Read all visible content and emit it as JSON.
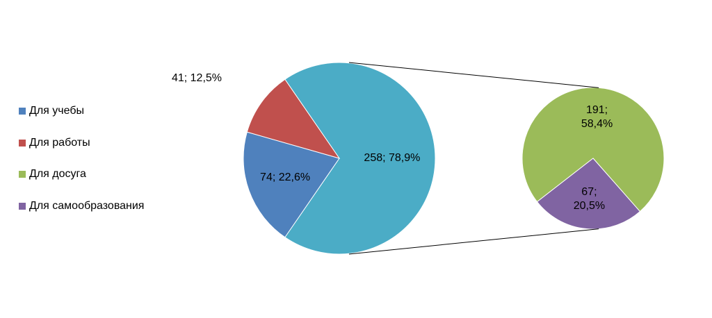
{
  "chart_data": {
    "type": "pie-of-pie",
    "main": {
      "categories": [
        "Для учебы",
        "Для работы",
        null
      ],
      "values": [
        74,
        41,
        258
      ],
      "value_labels": [
        "74; 22,6%",
        "41; 12,5%",
        "258; 78,9%"
      ],
      "colors": [
        "#4f81bd",
        "#c0504d",
        "#4bacc6"
      ]
    },
    "secondary": {
      "categories": [
        "Для досуга",
        "Для самообразования"
      ],
      "values": [
        191,
        67
      ],
      "value_labels": [
        "191; 58,4%",
        "67; 20,5%"
      ],
      "colors": [
        "#9bbb59",
        "#8064a2"
      ]
    },
    "legend": "left"
  }
}
